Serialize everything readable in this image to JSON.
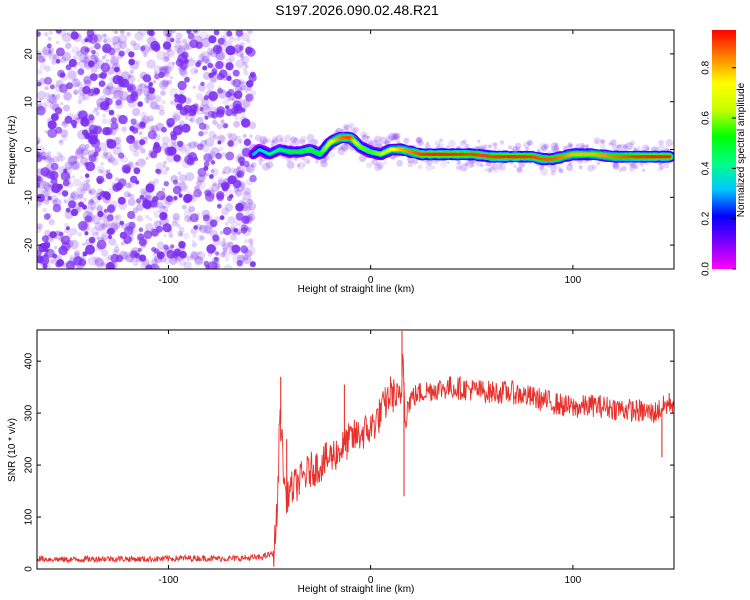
{
  "figure_title": "S197.2026.090.02.48.R21",
  "colors": {
    "snr_line": "#e8312c",
    "scatter_purple": "#7b2cf0",
    "axis": "#000000"
  },
  "colormap_stops": [
    "#ff00ff",
    "#7a00ff",
    "#0000ff",
    "#00c8ff",
    "#00ff80",
    "#00ff00",
    "#c8ff00",
    "#ffff00",
    "#ff8000",
    "#ff0000"
  ],
  "chart_data": [
    {
      "type": "heatmap",
      "title": "",
      "xlabel": "Height of straight line (km)",
      "ylabel": "Frequency (Hz)",
      "xlim": [
        -165,
        150
      ],
      "ylim": [
        -25,
        25
      ],
      "xticks": [
        -100,
        0,
        100
      ],
      "yticks": [
        20,
        10,
        0,
        -10,
        -20
      ],
      "colorbar": {
        "label": "Normalized spectral amplitude",
        "range": [
          0,
          0.95
        ],
        "ticks": [
          0.0,
          0.2,
          0.4,
          0.6,
          0.8
        ]
      },
      "noise_region": {
        "x_from": -165,
        "x_to": -58,
        "y_from": -25,
        "y_to": 25
      },
      "ridge": {
        "x": [
          -58,
          -55,
          -50,
          -45,
          -40,
          -35,
          -30,
          -25,
          -20,
          -15,
          -10,
          -5,
          0,
          5,
          10,
          15,
          20,
          25,
          30,
          40,
          50,
          60,
          70,
          80,
          85,
          90,
          95,
          100,
          110,
          120,
          130,
          140,
          148
        ],
        "y": [
          -1.0,
          0.0,
          -1.0,
          0.0,
          -0.5,
          -0.5,
          0.0,
          -1.0,
          1.5,
          2.5,
          2.5,
          0.5,
          -0.5,
          -1.0,
          0.0,
          0.0,
          -0.5,
          -1.0,
          -1.0,
          -1.0,
          -1.0,
          -1.5,
          -1.5,
          -1.5,
          -2.0,
          -2.0,
          -1.5,
          -1.0,
          -1.0,
          -1.5,
          -1.5,
          -1.5,
          -1.5
        ],
        "amplitude": [
          0.3,
          0.35,
          0.4,
          0.45,
          0.5,
          0.5,
          0.55,
          0.5,
          0.7,
          0.85,
          0.9,
          0.6,
          0.55,
          0.6,
          0.7,
          0.8,
          0.85,
          0.9,
          0.92,
          0.92,
          0.9,
          0.9,
          0.92,
          0.9,
          0.88,
          0.88,
          0.85,
          0.8,
          0.8,
          0.85,
          0.9,
          0.92,
          0.92
        ]
      }
    },
    {
      "type": "line",
      "title": "",
      "xlabel": "Height of straight line (km)",
      "ylabel": "SNR (10 * v/v)",
      "xlim": [
        -165,
        150
      ],
      "ylim": [
        0,
        460
      ],
      "xticks": [
        -100,
        0,
        100
      ],
      "yticks": [
        0,
        100,
        200,
        300,
        400
      ],
      "series": [
        {
          "name": "SNR",
          "x": [
            -165,
            -150,
            -130,
            -110,
            -90,
            -70,
            -55,
            -48,
            -46,
            -45,
            -44,
            -43,
            -42,
            -40,
            -35,
            -30,
            -25,
            -20,
            -15,
            -10,
            -5,
            0,
            5,
            10,
            15,
            16,
            17,
            20,
            25,
            30,
            40,
            50,
            60,
            70,
            80,
            90,
            100,
            110,
            120,
            130,
            140,
            148
          ],
          "y": [
            20,
            18,
            20,
            19,
            21,
            20,
            22,
            30,
            120,
            300,
            260,
            180,
            140,
            150,
            170,
            190,
            200,
            215,
            230,
            250,
            260,
            270,
            300,
            340,
            320,
            420,
            300,
            330,
            340,
            345,
            350,
            345,
            340,
            340,
            330,
            320,
            310,
            315,
            310,
            305,
            300,
            320
          ]
        }
      ],
      "spikes": [
        {
          "x": -44.5,
          "y": 370
        },
        {
          "x": -41.5,
          "y": 250
        },
        {
          "x": -13,
          "y": 355
        },
        {
          "x": 15.5,
          "y": 458
        },
        {
          "x": 16.5,
          "y": 140
        },
        {
          "x": 144,
          "y": 215
        }
      ]
    }
  ]
}
